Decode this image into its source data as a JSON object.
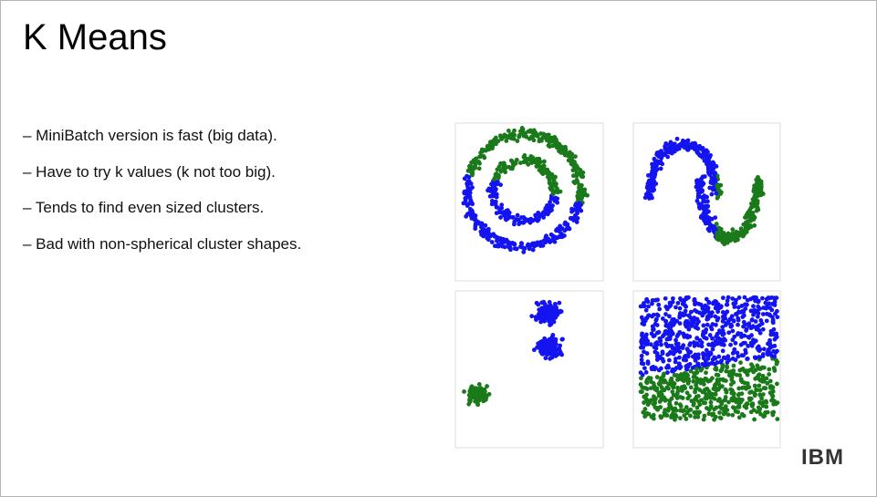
{
  "title": "K Means",
  "bullets": [
    "– MiniBatch version is fast (big data).",
    "– Have to try k values (k not too big).",
    "– Tends to find even sized clusters.",
    "– Bad with non-spherical cluster shapes."
  ],
  "logo": "IBM"
}
